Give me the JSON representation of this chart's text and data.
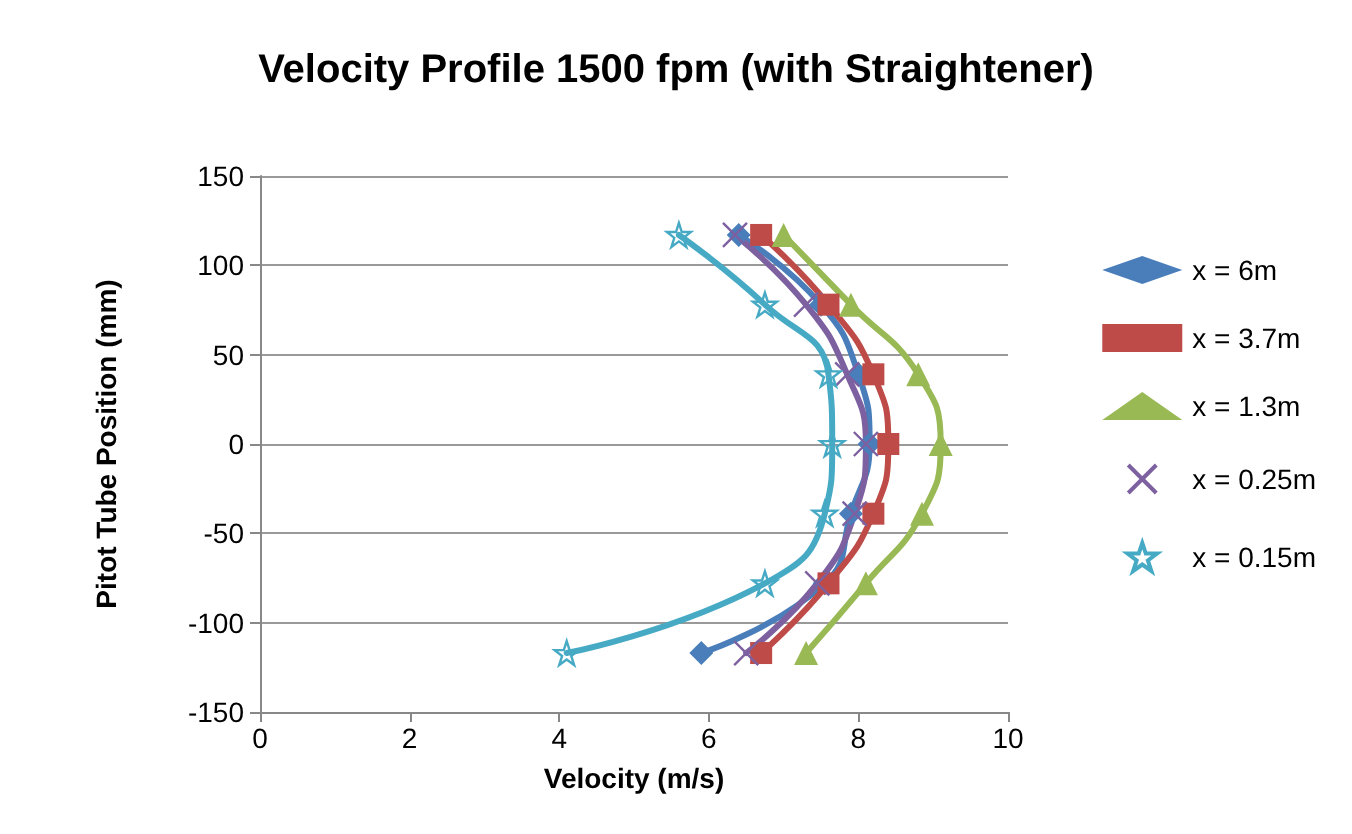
{
  "chart_data": {
    "type": "line",
    "title": "Velocity Profile 1500 fpm (with Straightener)",
    "xlabel": "Velocity (m/s)",
    "ylabel": "Pitot Tube Position (mm)",
    "xlim": [
      0,
      10
    ],
    "xticks": [
      0,
      2,
      4,
      6,
      8,
      10
    ],
    "ylim": [
      -150,
      150
    ],
    "yticks": [
      -150,
      -100,
      -50,
      0,
      50,
      100,
      150
    ],
    "grid": "y",
    "legend": "right",
    "series": [
      {
        "name": "x = 6m",
        "color": "#4a7ebb",
        "marker": "diamond",
        "x": [
          6.4,
          7.5,
          8.0,
          8.15,
          7.9,
          7.55,
          5.9
        ],
        "values": [
          117,
          78,
          39,
          0,
          -39,
          -78,
          -117
        ]
      },
      {
        "name": "x = 3.7m",
        "color": "#be4b48",
        "marker": "square",
        "x": [
          6.7,
          7.6,
          8.2,
          8.4,
          8.2,
          7.6,
          6.7
        ],
        "values": [
          117,
          78,
          39,
          0,
          -39,
          -78,
          -117
        ]
      },
      {
        "name": "x = 1.3m",
        "color": "#98b954",
        "marker": "triangle",
        "x": [
          7.0,
          7.9,
          8.8,
          9.1,
          8.85,
          8.1,
          7.3
        ],
        "values": [
          117,
          78,
          39,
          0,
          -39,
          -78,
          -117
        ]
      },
      {
        "name": "x = 0.25m",
        "color": "#7d60a0",
        "marker": "cross",
        "x": [
          6.35,
          7.3,
          7.85,
          8.1,
          7.95,
          7.45,
          6.5
        ],
        "values": [
          117,
          78,
          39,
          0,
          -39,
          -78,
          -117
        ]
      },
      {
        "name": "x = 0.15m",
        "color": "#46aac5",
        "marker": "star",
        "x": [
          5.6,
          6.75,
          7.6,
          7.65,
          7.55,
          6.75,
          4.1
        ],
        "values": [
          117,
          78,
          39,
          0,
          -39,
          -78,
          -117
        ]
      }
    ]
  }
}
